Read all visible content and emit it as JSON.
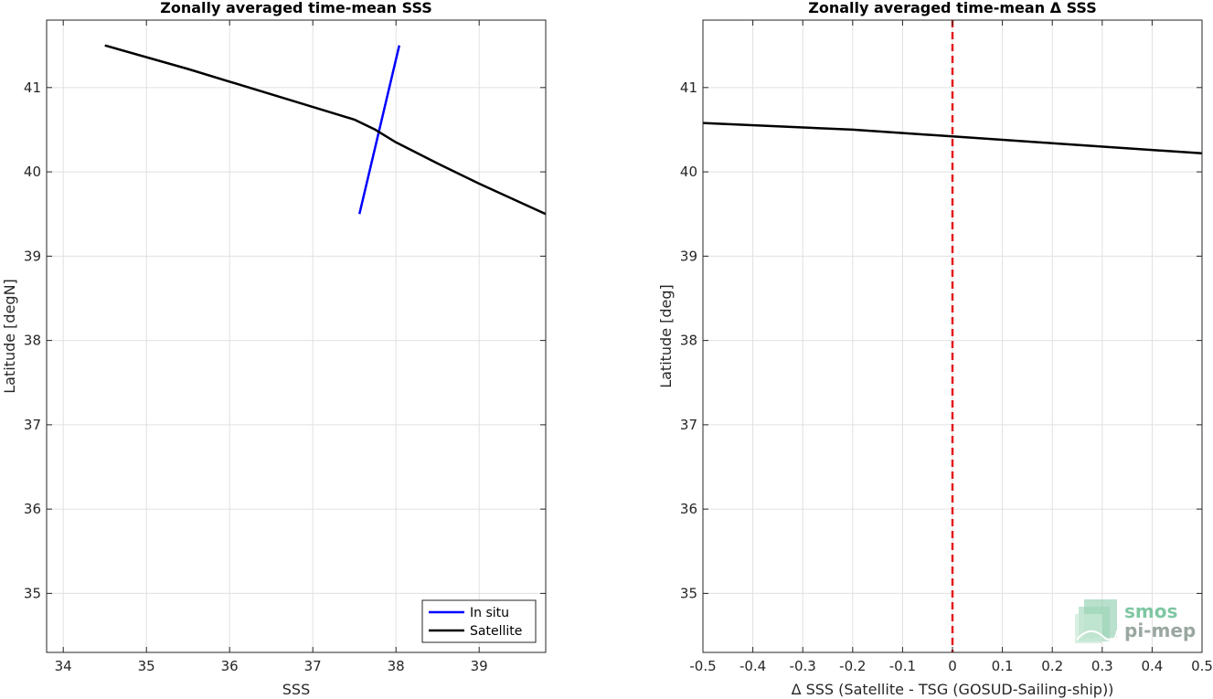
{
  "chart_data": [
    {
      "type": "line",
      "title": "Zonally averaged time-mean SSS",
      "xlabel": "SSS",
      "ylabel": "Latitude [degN]",
      "xlim": [
        33.8,
        39.8
      ],
      "ylim": [
        34.3,
        41.8
      ],
      "xticks": [
        34,
        35,
        36,
        37,
        38,
        39
      ],
      "yticks": [
        35,
        36,
        37,
        38,
        39,
        40,
        41
      ],
      "grid": true,
      "legend": "bottom-right",
      "series": [
        {
          "name": "In situ",
          "color": "#0000ff",
          "x": [
            37.56,
            38.04
          ],
          "y": [
            39.5,
            41.5
          ]
        },
        {
          "name": "Satellite",
          "color": "#000000",
          "x": [
            34.5,
            35.5,
            36.5,
            37.5,
            37.75,
            38.0,
            38.5,
            39.0,
            39.8
          ],
          "y": [
            41.5,
            41.22,
            40.92,
            40.62,
            40.5,
            40.35,
            40.1,
            39.86,
            39.5
          ]
        }
      ]
    },
    {
      "type": "line",
      "title": "Zonally averaged time-mean Δ SSS",
      "xlabel": "Δ SSS (Satellite - TSG (GOSUD-Sailing-ship))",
      "ylabel": "Latitude [deg]",
      "xlim": [
        -0.5,
        0.5
      ],
      "ylim": [
        34.3,
        41.8
      ],
      "xticks": [
        -0.5,
        -0.4,
        -0.3,
        -0.2,
        -0.1,
        0,
        0.1,
        0.2,
        0.3,
        0.4,
        0.5
      ],
      "yticks": [
        35,
        36,
        37,
        38,
        39,
        40,
        41
      ],
      "grid": true,
      "reference_line": {
        "x": 0,
        "color": "#e41a1c",
        "style": "dashed"
      },
      "series": [
        {
          "name": "",
          "color": "#000000",
          "x": [
            -0.5,
            -0.2,
            0,
            0.2,
            0.5
          ],
          "y": [
            40.58,
            40.5,
            40.42,
            40.34,
            40.22
          ]
        }
      ]
    }
  ],
  "logo": {
    "line1": "smos",
    "line2": "pi-mep"
  }
}
